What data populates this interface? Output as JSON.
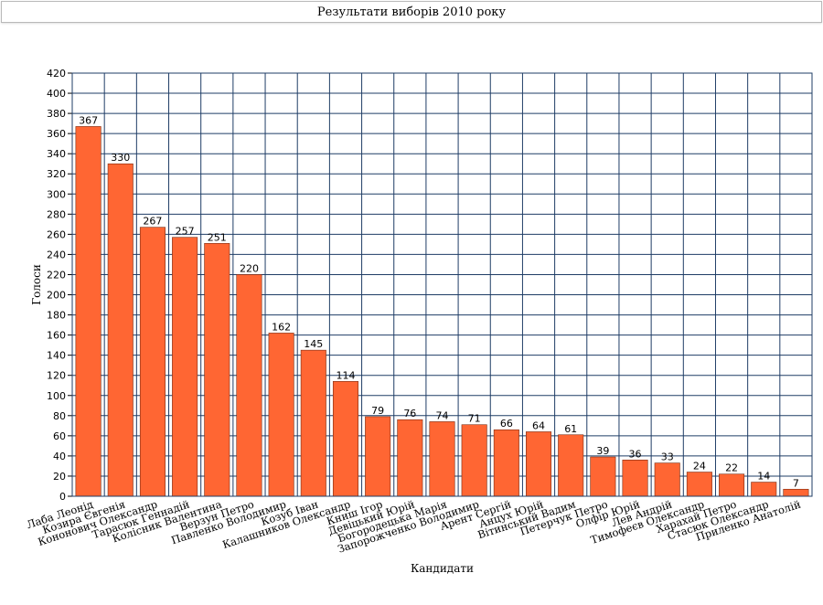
{
  "chart_data": {
    "type": "bar",
    "title": "Результати виборів 2010 року",
    "xlabel": "Кандидати",
    "ylabel": "Голоси",
    "ylim": [
      0,
      420
    ],
    "y_tick_step": 20,
    "grid": true,
    "bar_color": "#ff6633",
    "grid_color": "#1f3d66",
    "categories": [
      "Лаба Леонід",
      "Козира Євгенія",
      "Кононович Олександр",
      "Тарасюк Геннадій",
      "Колісник Валентина",
      "Верзун Петро",
      "Павленко Володимир",
      "Козуб Іван",
      "Калашников Олександр",
      "Книш Ігор",
      "Девіцький Юрій",
      "Богородецька Марія",
      "Запорожченко Володимир",
      "Арент Сергій",
      "Анцух Юрій",
      "Вітинський Вадим",
      "Петерчук Петро",
      "Олфір Юрій",
      "Лев Андрій",
      "Тимофеєв Олександр",
      "Харахай Петро",
      "Стасюк Олександр",
      "Приленко Анатолій"
    ],
    "values": [
      367,
      330,
      267,
      257,
      251,
      220,
      162,
      145,
      114,
      79,
      76,
      74,
      71,
      66,
      64,
      61,
      39,
      36,
      33,
      24,
      22,
      14,
      7
    ]
  }
}
